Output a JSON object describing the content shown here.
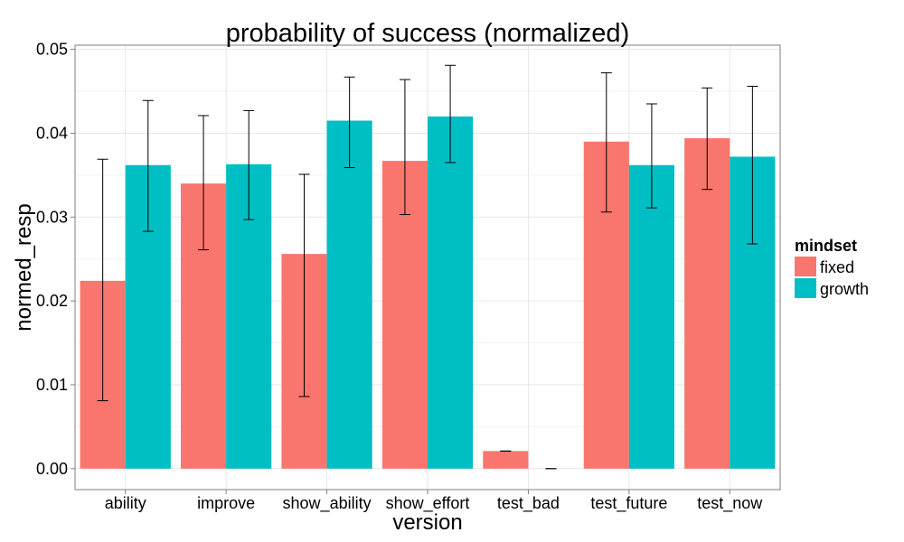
{
  "chart_data": {
    "type": "bar",
    "title": "probability of success  (normalized)",
    "xlabel": "version",
    "ylabel": "normed_resp",
    "categories": [
      "ability",
      "improve",
      "show_ability",
      "show_effort",
      "test_bad",
      "test_future",
      "test_now"
    ],
    "ylim": [
      -0.0025,
      0.0505
    ],
    "yticks": [
      0,
      0.01,
      0.02,
      0.03,
      0.04,
      0.05
    ],
    "ytick_labels": [
      "0.00",
      "0.01",
      "0.02",
      "0.03",
      "0.04",
      "0.05"
    ],
    "grid": true,
    "legend": {
      "title": "mindset",
      "position": "right"
    },
    "series": [
      {
        "name": "fixed",
        "color": "#F8766D",
        "values": [
          0.0224,
          0.034,
          0.0256,
          0.0367,
          0.0021,
          0.039,
          0.0394
        ],
        "error_low": [
          0.0081,
          0.0261,
          0.0086,
          0.0303,
          0.0021,
          0.0306,
          0.0333
        ],
        "error_high": [
          0.0369,
          0.0421,
          0.0351,
          0.0464,
          0.0021,
          0.0472,
          0.0454
        ]
      },
      {
        "name": "growth",
        "color": "#00BFC4",
        "values": [
          0.0362,
          0.0363,
          0.0415,
          0.042,
          0.0,
          0.0362,
          0.0372
        ],
        "error_low": [
          0.0283,
          0.0297,
          0.0359,
          0.0365,
          0.0,
          0.0311,
          0.0268
        ],
        "error_high": [
          0.0439,
          0.0427,
          0.0467,
          0.0481,
          0.0,
          0.0435,
          0.0456
        ]
      }
    ]
  }
}
